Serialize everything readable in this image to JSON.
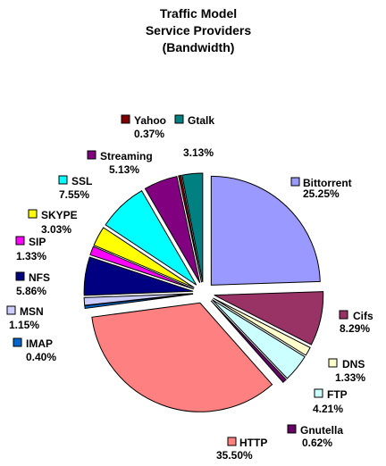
{
  "chart_data": {
    "type": "pie",
    "title": [
      "Traffic Model",
      "Service Providers",
      "(Bandwidth)"
    ],
    "categories": [
      "Bittorrent",
      "Cifs",
      "DNS",
      "FTP",
      "Gnutella",
      "HTTP",
      "IMAP",
      "MSN",
      "NFS",
      "SIP",
      "SKYPE",
      "SSL",
      "Streaming",
      "Yahoo",
      "Gtalk"
    ],
    "values": [
      25.25,
      8.29,
      1.33,
      4.21,
      0.62,
      35.5,
      0.4,
      1.15,
      5.86,
      1.33,
      3.03,
      7.55,
      5.13,
      0.37,
      3.13
    ],
    "value_labels": [
      "25.25%",
      "8.29%",
      "1.33%",
      "4.21%",
      "0.62%",
      "35.50%",
      "0.40%",
      "1.15%",
      "5.86%",
      "1.33%",
      "3.03%",
      "7.55%",
      "5.13%",
      "0.37%",
      "3.13%"
    ],
    "colors": [
      "#9999ff",
      "#993366",
      "#ffffcc",
      "#ccffff",
      "#660066",
      "#ff8080",
      "#0066cc",
      "#ccccff",
      "#000080",
      "#ff00ff",
      "#ffff00",
      "#00ffff",
      "#800080",
      "#800000",
      "#008080"
    ]
  }
}
